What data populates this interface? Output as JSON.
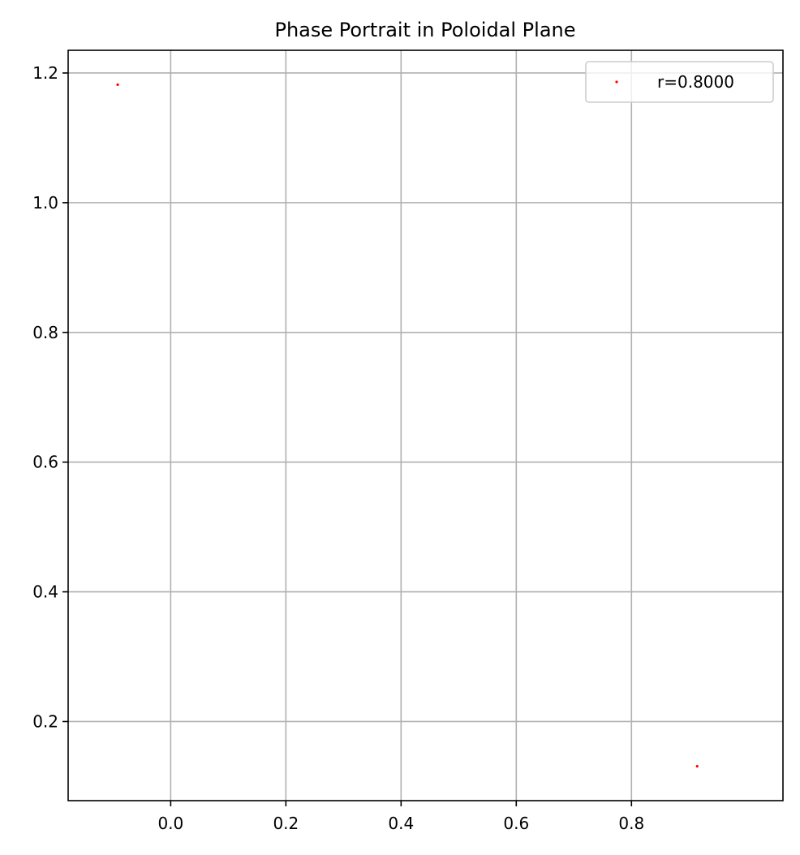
{
  "chart_data": {
    "type": "scatter",
    "title": "Phase Portrait in Poloidal Plane",
    "xlabel": "",
    "ylabel": "",
    "xlim": [
      -0.178,
      1.063
    ],
    "ylim": [
      0.078,
      1.235
    ],
    "xticks": [
      0.0,
      0.2,
      0.4,
      0.6,
      0.8
    ],
    "xtick_labels": [
      "0.0",
      "0.2",
      "0.4",
      "0.6",
      "0.8"
    ],
    "yticks": [
      0.2,
      0.4,
      0.6,
      0.8,
      1.0,
      1.2
    ],
    "ytick_labels": [
      "0.2",
      "0.4",
      "0.6",
      "0.8",
      "1.0",
      "1.2"
    ],
    "grid": true,
    "legend_position": "top-right",
    "series": [
      {
        "name": "r=0.8000",
        "color": "#ff0000",
        "marker": "point",
        "points": [
          {
            "x": -0.092,
            "y": 1.182
          },
          {
            "x": 0.914,
            "y": 0.131
          }
        ]
      }
    ]
  }
}
